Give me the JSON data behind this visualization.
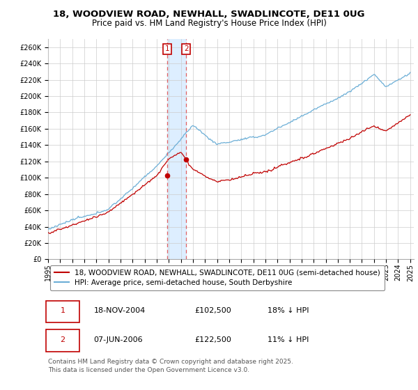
{
  "title": "18, WOODVIEW ROAD, NEWHALL, SWADLINCOTE, DE11 0UG",
  "subtitle": "Price paid vs. HM Land Registry's House Price Index (HPI)",
  "ylim": [
    0,
    270000
  ],
  "yticks": [
    0,
    20000,
    40000,
    60000,
    80000,
    100000,
    120000,
    140000,
    160000,
    180000,
    200000,
    220000,
    240000,
    260000
  ],
  "x_start_year": 1995,
  "x_end_year": 2025,
  "sale1_date": 2004.88,
  "sale1_price": 102500,
  "sale1_label": "1",
  "sale2_date": 2006.44,
  "sale2_price": 122500,
  "sale2_label": "2",
  "hpi_color": "#6baed6",
  "price_color": "#c00000",
  "vline_color": "#e06060",
  "vspan_color": "#ddeeff",
  "grid_color": "#cccccc",
  "legend_label_red": "18, WOODVIEW ROAD, NEWHALL, SWADLINCOTE, DE11 0UG (semi-detached house)",
  "legend_label_blue": "HPI: Average price, semi-detached house, South Derbyshire",
  "table_row1": [
    "1",
    "18-NOV-2004",
    "£102,500",
    "18% ↓ HPI"
  ],
  "table_row2": [
    "2",
    "07-JUN-2006",
    "£122,500",
    "11% ↓ HPI"
  ],
  "footer": "Contains HM Land Registry data © Crown copyright and database right 2025.\nThis data is licensed under the Open Government Licence v3.0.",
  "title_fontsize": 9.5,
  "subtitle_fontsize": 8.5,
  "tick_fontsize": 7,
  "legend_fontsize": 7.5,
  "table_fontsize": 8,
  "footer_fontsize": 6.5
}
